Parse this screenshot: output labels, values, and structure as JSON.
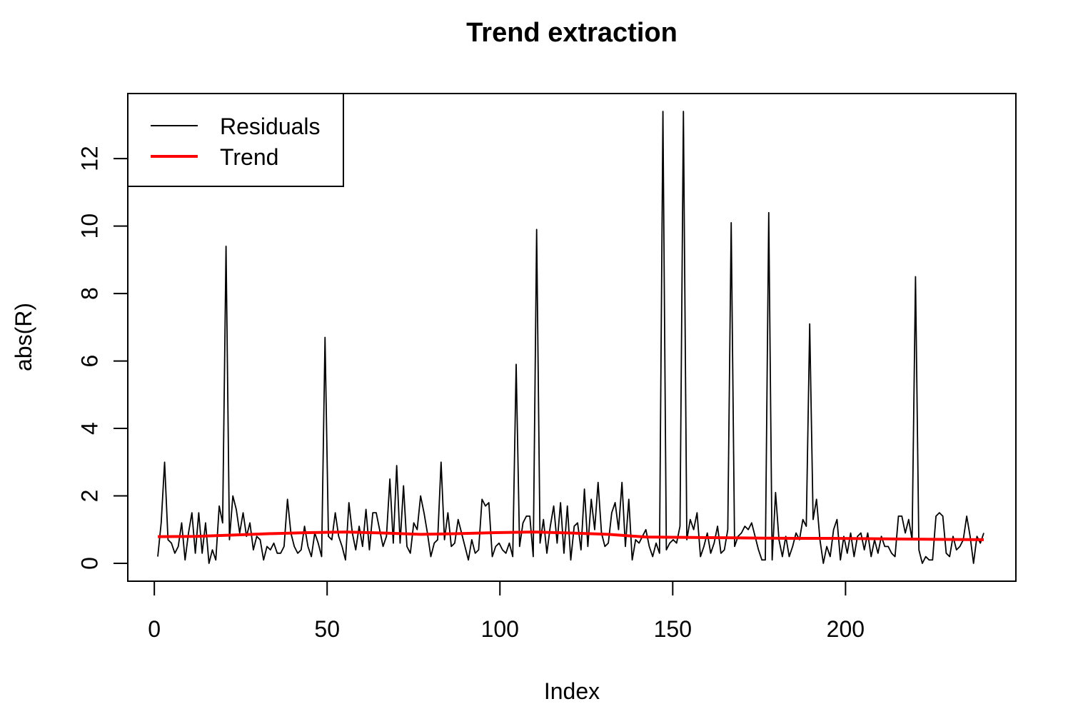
{
  "chart_data": {
    "type": "line",
    "title": "Trend extraction",
    "xlabel": "Index",
    "ylabel": "abs(R)",
    "xlim": [
      1,
      240
    ],
    "ylim": [
      0,
      13.4
    ],
    "x_ticks": [
      0,
      50,
      100,
      150,
      200
    ],
    "y_ticks": [
      0,
      2,
      4,
      6,
      8,
      10,
      12
    ],
    "grid": false,
    "legend_position": "top-left",
    "series": [
      {
        "name": "Residuals",
        "color": "#000000",
        "values": [
          0.2,
          1.2,
          3.0,
          0.7,
          0.6,
          0.3,
          0.5,
          1.2,
          0.1,
          0.9,
          1.5,
          0.3,
          1.5,
          0.3,
          1.2,
          0.0,
          0.4,
          0.1,
          1.7,
          1.2,
          9.4,
          0.7,
          2.0,
          1.6,
          0.9,
          1.5,
          0.8,
          1.2,
          0.4,
          0.8,
          0.7,
          0.1,
          0.5,
          0.4,
          0.6,
          0.3,
          0.3,
          0.5,
          1.9,
          0.9,
          0.5,
          0.3,
          0.4,
          1.1,
          0.5,
          0.2,
          0.9,
          0.6,
          0.2,
          6.7,
          0.8,
          0.7,
          1.5,
          0.8,
          0.5,
          0.1,
          1.8,
          0.9,
          0.4,
          1.1,
          0.5,
          1.6,
          0.4,
          1.5,
          1.5,
          1.0,
          0.5,
          0.8,
          2.5,
          0.6,
          2.9,
          0.6,
          2.3,
          0.5,
          0.3,
          1.2,
          1.0,
          2.0,
          1.5,
          0.9,
          0.2,
          0.6,
          0.7,
          3.0,
          0.7,
          1.5,
          0.5,
          0.6,
          1.3,
          0.9,
          0.5,
          0.1,
          0.7,
          0.3,
          0.4,
          1.9,
          1.7,
          1.8,
          0.2,
          0.5,
          0.6,
          0.4,
          0.3,
          0.6,
          0.2,
          5.9,
          0.5,
          1.2,
          1.4,
          1.4,
          0.2,
          9.9,
          0.6,
          1.3,
          0.3,
          1.1,
          1.7,
          0.6,
          1.8,
          0.3,
          1.7,
          0.1,
          1.1,
          1.2,
          0.4,
          2.2,
          0.5,
          1.9,
          1.0,
          2.4,
          0.9,
          0.5,
          0.6,
          1.5,
          1.8,
          1.0,
          2.4,
          0.5,
          1.9,
          0.1,
          0.7,
          0.6,
          0.8,
          1.0,
          0.5,
          0.2,
          0.6,
          0.3,
          13.4,
          0.4,
          0.6,
          0.7,
          0.6,
          1.1,
          13.4,
          0.7,
          1.3,
          1.0,
          1.5,
          0.2,
          0.5,
          0.9,
          0.3,
          0.6,
          1.1,
          0.3,
          0.4,
          1.0,
          10.1,
          0.5,
          0.8,
          0.9,
          1.1,
          1.0,
          1.2,
          0.8,
          0.4,
          0.1,
          0.1,
          10.4,
          0.1,
          2.1,
          0.7,
          0.2,
          0.8,
          0.2,
          0.5,
          0.9,
          0.7,
          1.3,
          1.1,
          7.1,
          1.3,
          1.9,
          0.7,
          0.0,
          0.5,
          0.2,
          1.0,
          1.3,
          0.1,
          0.8,
          0.3,
          0.9,
          0.2,
          0.8,
          0.9,
          0.4,
          0.9,
          0.2,
          0.7,
          0.3,
          0.8,
          0.5,
          0.5,
          0.3,
          0.2,
          1.4,
          1.4,
          0.9,
          1.3,
          0.7,
          8.5,
          0.4,
          0.0,
          0.2,
          0.1,
          0.1,
          1.4,
          1.5,
          1.4,
          0.3,
          0.2,
          0.8,
          0.4,
          0.5,
          0.7,
          1.4,
          0.8,
          0.0,
          0.8,
          0.6,
          0.9
        ]
      },
      {
        "name": "Trend",
        "color": "#ff0000",
        "values": [
          0.79,
          0.8,
          0.84,
          0.88,
          0.91,
          0.93,
          0.9,
          0.86,
          0.88,
          0.91,
          0.93,
          0.9,
          0.86,
          0.78,
          0.77,
          0.76,
          0.75,
          0.74,
          0.74,
          0.73,
          0.72,
          0.71,
          0.7
        ]
      }
    ]
  }
}
